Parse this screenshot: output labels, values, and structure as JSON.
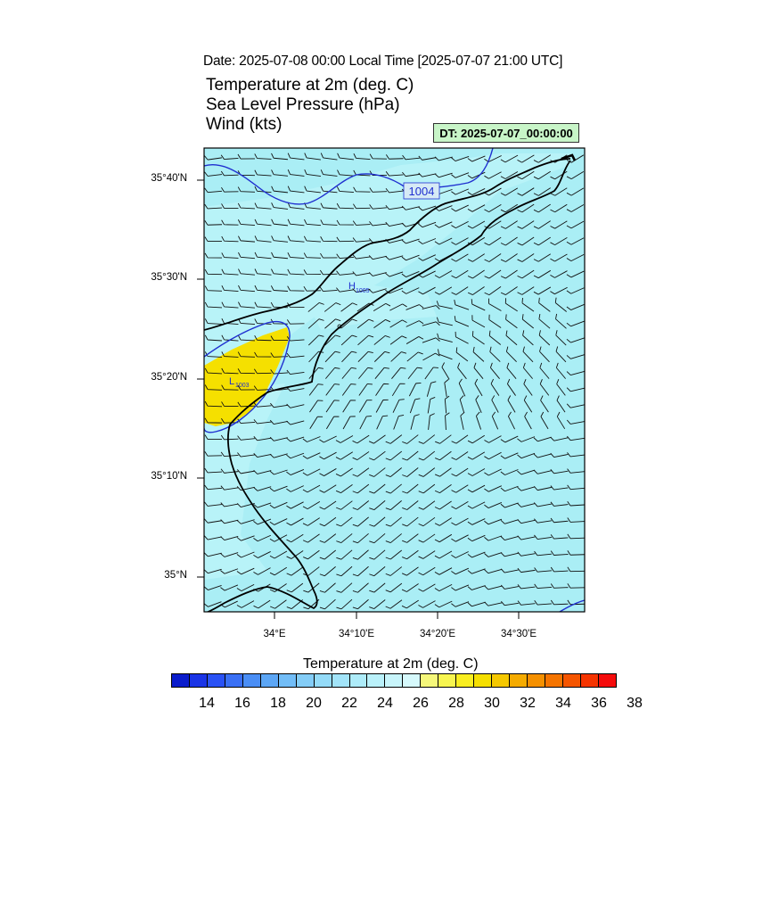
{
  "header": {
    "date_line": "Date: 2025-07-08  00:00 Local Time [2025-07-07  21:00 UTC]",
    "fields": [
      "Temperature at 2m   (deg. C)",
      "Sea Level Pressure   (hPa)",
      "Wind   (kts)"
    ],
    "dt_badge": "DT: 2025-07-07_00:00:00"
  },
  "map": {
    "lat_ticks": [
      "35°40'N",
      "35°30'N",
      "35°20'N",
      "35°10'N",
      "35°N"
    ],
    "lon_ticks": [
      "34°E",
      "34°10'E",
      "34°20'E",
      "34°30'E"
    ],
    "isobar_label": "1004",
    "high_label": "H",
    "high_value": "1005",
    "low_label": "L",
    "low_value": "1003",
    "colors": {
      "sea": "#aaeef5",
      "land_cool": "#b8f3f8",
      "warm": "#f5e000",
      "isobar": "#1f2fd0",
      "coast": "#000000"
    }
  },
  "colorbar": {
    "title": "Temperature at 2m  (deg. C)",
    "colors": [
      "#0a1ccc",
      "#1a34e6",
      "#2a52f5",
      "#3a70f5",
      "#4a8ef5",
      "#5ca6f5",
      "#72bdf7",
      "#84cdf7",
      "#94dbf8",
      "#a2e4f9",
      "#aeecf9",
      "#baf1fa",
      "#c8f5fb",
      "#d6f9fc",
      "#f5f77a",
      "#f7f550",
      "#f9ee20",
      "#f5df00",
      "#f5c800",
      "#f5ab00",
      "#f59000",
      "#f57400",
      "#f55500",
      "#f53400",
      "#f50c0c"
    ],
    "labels": [
      "14",
      "16",
      "18",
      "20",
      "22",
      "24",
      "26",
      "28",
      "30",
      "32",
      "34",
      "36",
      "38"
    ]
  }
}
